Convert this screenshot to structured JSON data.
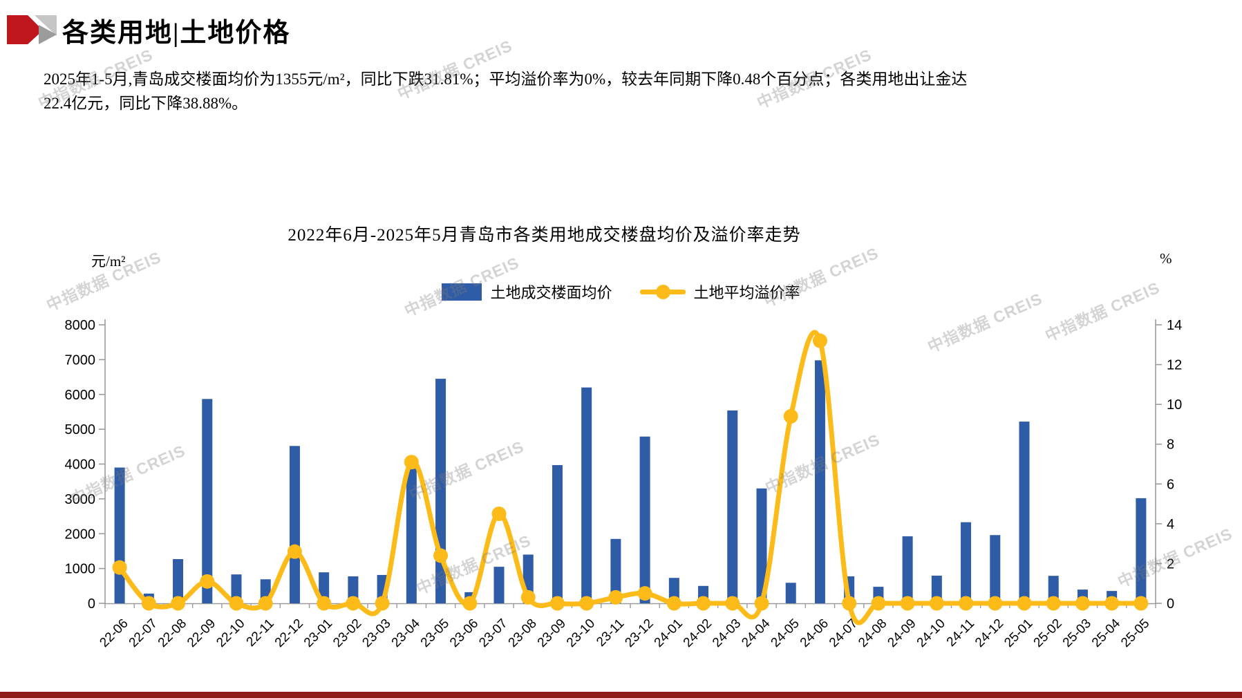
{
  "header": {
    "title": "各类用地|土地价格"
  },
  "summary": {
    "line1": "2025年1-5月,青岛成交楼面均价为1355元/m²，同比下跌31.81%；平均溢价率为0%，较去年同期下降0.48个百分点；各类用地出让金达",
    "line2": "22.4亿元，同比下降38.88%。"
  },
  "watermark": {
    "text": "中指数据 CREIS"
  },
  "chart_data": {
    "type": "bar",
    "subtype": "bar+line combo, dual axis",
    "title": "2022年6月-2025年5月青岛市各类用地成交楼盘均价及溢价率走势",
    "left_axis": {
      "unit": "元/m²",
      "min": 0,
      "max": 8000,
      "step": 1000
    },
    "right_axis": {
      "unit": "%",
      "min": 0,
      "max": 14,
      "step": 2
    },
    "grid": false,
    "legend_position": "top-center",
    "categories": [
      "22-06",
      "22-07",
      "22-08",
      "22-09",
      "22-10",
      "22-11",
      "22-12",
      "23-01",
      "23-02",
      "23-03",
      "23-04",
      "23-05",
      "23-06",
      "23-07",
      "23-08",
      "23-09",
      "23-10",
      "23-11",
      "23-12",
      "24-01",
      "24-02",
      "24-03",
      "24-04",
      "24-05",
      "24-06",
      "24-07",
      "24-08",
      "24-09",
      "24-10",
      "24-11",
      "24-12",
      "25-01",
      "25-02",
      "25-03",
      "25-04",
      "25-05"
    ],
    "series": [
      {
        "name": "土地成交楼面均价",
        "type": "bar",
        "axis": "left",
        "color": "#2f5ca6",
        "values": [
          3900,
          280,
          1270,
          5870,
          830,
          690,
          4520,
          890,
          775,
          815,
          3870,
          6450,
          320,
          1050,
          1400,
          3970,
          6200,
          1850,
          4790,
          730,
          500,
          5540,
          3300,
          590,
          6980,
          775,
          475,
          1925,
          795,
          2330,
          1960,
          5220,
          790,
          395,
          355,
          3020
        ]
      },
      {
        "name": "土地平均溢价率",
        "type": "line",
        "axis": "right",
        "color": "#fcbb19",
        "values": [
          1.8,
          0,
          0,
          1.1,
          0,
          0,
          2.6,
          0,
          0,
          0,
          7.1,
          2.4,
          0,
          4.5,
          0.3,
          0,
          0,
          0.3,
          0.5,
          0,
          0,
          0,
          0,
          9.4,
          13.2,
          0,
          0,
          0,
          0,
          0,
          0,
          0,
          0,
          0,
          0,
          0
        ]
      }
    ]
  },
  "colors": {
    "bar": "#2f5ca6",
    "line": "#fcbb19",
    "axis": "#9b9b9b",
    "text": "#000000",
    "footer_bar": "#8e1a1a",
    "logo_red": "#c0161d",
    "logo_gray_light": "#c6c6c6",
    "logo_gray_dark": "#9b9b9b",
    "watermark": "#7d7d7d"
  }
}
